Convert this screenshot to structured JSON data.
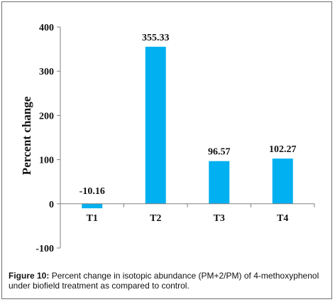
{
  "chart_data": {
    "type": "bar",
    "categories": [
      "T1",
      "T2",
      "T3",
      "T4"
    ],
    "values": [
      -10.16,
      355.33,
      96.57,
      102.27
    ],
    "data_labels": [
      "-10.16",
      "355.33",
      "96.57",
      "102.27"
    ],
    "ylabel": "Percent change",
    "ylim": [
      -100,
      400
    ],
    "yticks": [
      -100,
      0,
      100,
      200,
      300,
      400
    ],
    "bar_color": "#00b0f0",
    "grid": false,
    "legend": "none"
  },
  "caption": {
    "label": "Figure 10:",
    "text": " Percent change in isotopic abundance (PM+2/PM) of 4-methoxyphenol under biofield treatment as compared to control."
  }
}
